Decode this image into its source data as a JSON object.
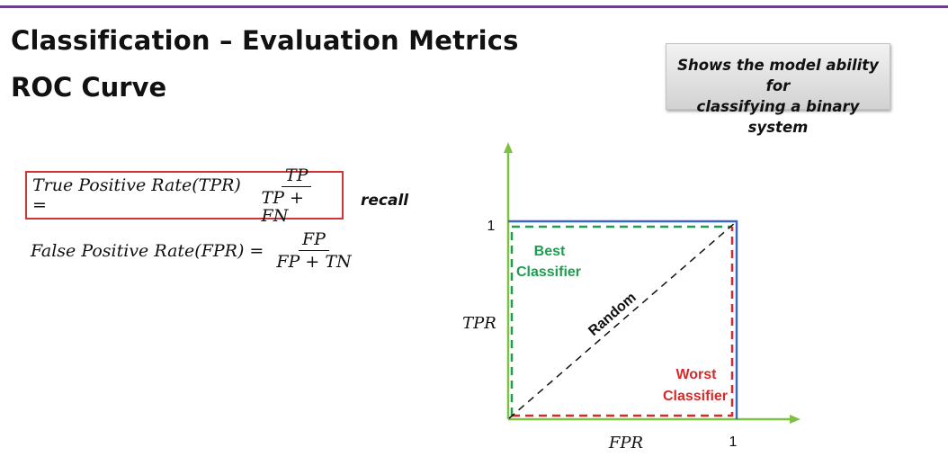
{
  "header": {
    "title": "Classification – Evaluation Metrics",
    "subtitle": "ROC Curve"
  },
  "callout": {
    "line1": "Shows the model ability for",
    "line2": "classifying a binary system"
  },
  "formulas": {
    "tpr": {
      "label": "True Positive Rate(TPR) =",
      "numerator": "TP",
      "denominator": "TP + FN",
      "tag": "recall"
    },
    "fpr": {
      "label": "False Positive Rate(FPR) =",
      "numerator": "FP",
      "denominator": "FP + TN"
    }
  },
  "plot": {
    "x_label": "FPR",
    "y_label": "TPR",
    "x_tick": "1",
    "y_tick": "1",
    "best_line1": "Best",
    "best_line2": "Classifier",
    "random": "Random",
    "worst_line1": "Worst",
    "worst_line2": "Classifier",
    "colors": {
      "axes": "#7cc142",
      "best": "#1e9e4f",
      "worst": "#d42a2a",
      "perfect_box": "#3a66c4",
      "random": "#111111",
      "formula_box": "#d33333",
      "rule": "#6a3f8f"
    }
  }
}
